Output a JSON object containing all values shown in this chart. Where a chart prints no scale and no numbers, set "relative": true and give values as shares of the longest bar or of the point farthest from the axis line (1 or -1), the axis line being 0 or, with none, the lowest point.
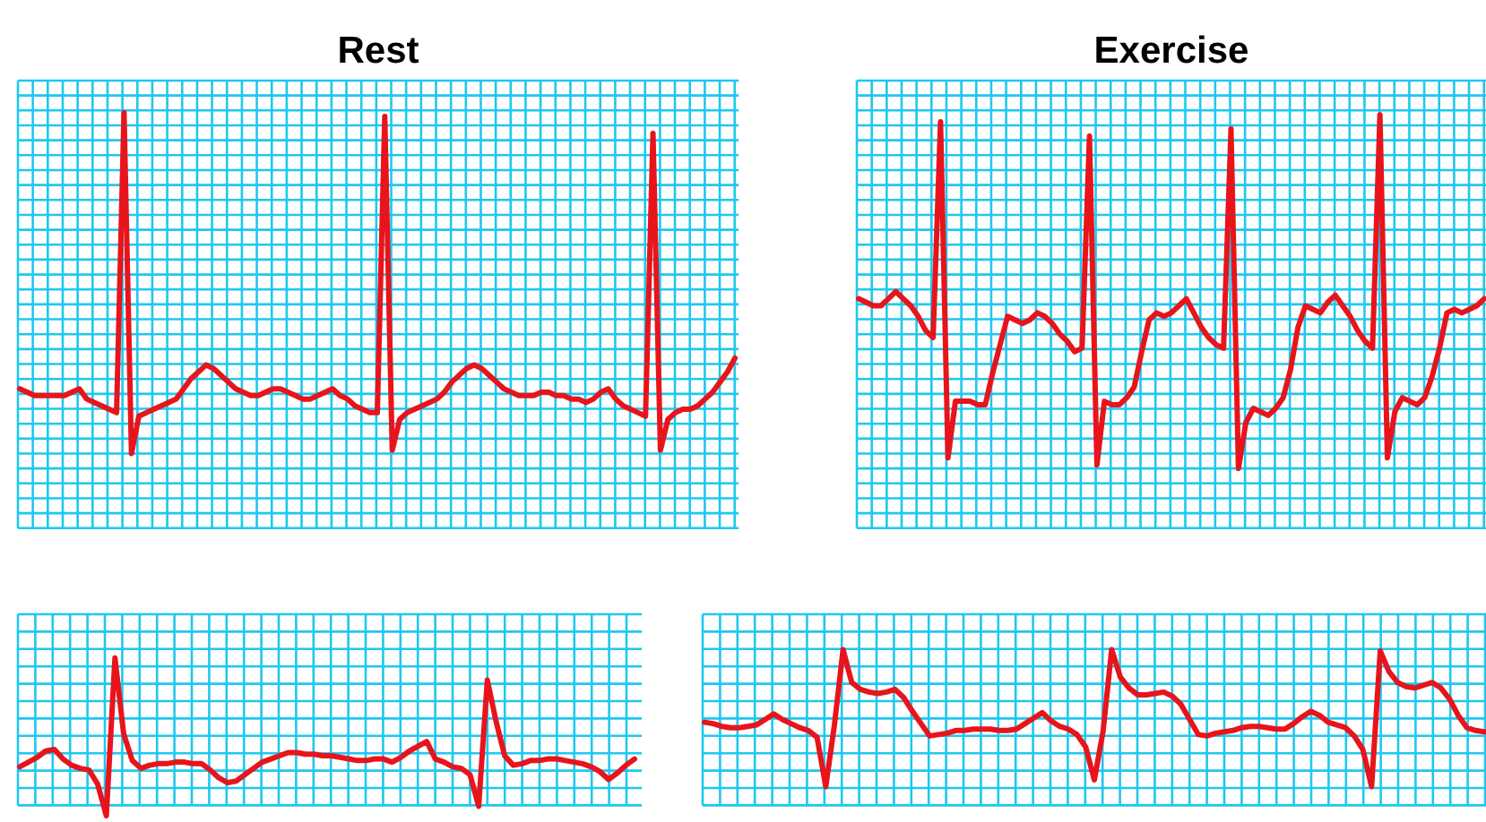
{
  "chart_data": [
    {
      "type": "line",
      "title": "Rest",
      "relative": true,
      "grid": true,
      "categories": [
        null,
        null,
        null,
        null,
        null,
        null,
        null,
        null,
        null,
        null,
        null,
        null,
        null,
        null,
        null,
        null,
        null,
        null,
        null,
        null,
        null,
        null,
        null,
        null,
        null,
        null,
        null,
        null,
        null,
        null,
        null,
        null,
        null,
        null,
        null,
        null,
        null,
        null,
        null,
        null,
        null,
        null,
        null,
        null,
        null,
        null,
        null,
        null,
        null,
        null,
        null,
        null,
        null,
        null,
        null,
        null,
        null,
        null,
        null,
        null,
        null,
        null,
        null,
        null,
        null,
        null,
        null,
        null,
        null,
        null,
        null,
        null,
        null,
        null,
        null,
        null,
        null,
        null,
        null,
        null,
        null,
        null,
        null,
        null,
        null,
        null,
        null,
        null,
        null,
        null,
        null,
        null,
        null,
        null,
        null,
        null,
        null
      ],
      "series": [
        {
          "color": "#e8141c",
          "values": [
            0.19,
            0.18,
            0.17,
            0.17,
            0.17,
            0.17,
            0.17,
            0.18,
            0.19,
            0.16,
            0.15,
            0.14,
            0.13,
            0.12,
            1,
            0,
            0.11,
            0.12,
            0.13,
            0.14,
            0.15,
            0.16,
            0.19,
            0.22,
            0.24,
            0.26,
            0.25,
            0.23,
            0.21,
            0.19,
            0.18,
            0.17,
            0.17,
            0.18,
            0.19,
            0.19,
            0.18,
            0.17,
            0.16,
            0.16,
            0.17,
            0.18,
            0.19,
            0.17,
            0.16,
            0.14,
            0.13,
            0.12,
            0.12,
            0.99,
            0.01,
            0.1,
            0.12,
            0.13,
            0.14,
            0.15,
            0.16,
            0.18,
            0.21,
            0.23,
            0.25,
            0.26,
            0.25,
            0.23,
            0.21,
            0.19,
            0.18,
            0.17,
            0.17,
            0.17,
            0.18,
            0.18,
            0.17,
            0.17,
            0.16,
            0.16,
            0.15,
            0.16,
            0.18,
            0.19,
            0.16,
            0.14,
            0.13,
            0.12,
            0.11,
            0.94,
            0.01,
            0.1,
            0.12,
            0.13,
            0.13,
            0.14,
            0.16,
            0.18,
            0.21,
            0.24,
            0.28
          ]
        }
      ]
    },
    {
      "type": "line",
      "title": "Exercise",
      "relative": true,
      "grid": true,
      "categories": [
        null,
        null,
        null,
        null,
        null,
        null,
        null,
        null,
        null,
        null,
        null,
        null,
        null,
        null,
        null,
        null,
        null,
        null,
        null,
        null,
        null,
        null,
        null,
        null,
        null,
        null,
        null,
        null,
        null,
        null,
        null,
        null,
        null,
        null,
        null,
        null,
        null,
        null,
        null,
        null,
        null,
        null,
        null,
        null,
        null,
        null,
        null,
        null,
        null,
        null,
        null,
        null,
        null,
        null,
        null,
        null,
        null,
        null,
        null,
        null,
        null,
        null,
        null,
        null,
        null,
        null,
        null,
        null,
        null,
        null,
        null,
        null,
        null,
        null,
        null,
        null,
        null,
        null,
        null,
        null,
        null,
        null,
        null,
        null,
        null
      ],
      "series": [
        {
          "color": "#e8141c",
          "values": [
            0.48,
            0.47,
            0.46,
            0.46,
            0.48,
            0.5,
            0.48,
            0.46,
            0.43,
            0.39,
            0.37,
            0.98,
            0.03,
            0.19,
            0.19,
            0.19,
            0.18,
            0.18,
            0.27,
            0.35,
            0.43,
            0.42,
            0.41,
            0.42,
            0.44,
            0.43,
            0.41,
            0.38,
            0.36,
            0.33,
            0.34,
            0.94,
            0.01,
            0.19,
            0.18,
            0.18,
            0.2,
            0.23,
            0.33,
            0.42,
            0.44,
            0.43,
            0.44,
            0.46,
            0.48,
            0.44,
            0.4,
            0.37,
            0.35,
            0.34,
            0.96,
            0,
            0.13,
            0.17,
            0.16,
            0.15,
            0.17,
            0.2,
            0.28,
            0.4,
            0.46,
            0.45,
            0.44,
            0.47,
            0.49,
            0.46,
            0.43,
            0.39,
            0.36,
            0.34,
            1,
            0.03,
            0.16,
            0.2,
            0.19,
            0.18,
            0.2,
            0.26,
            0.34,
            0.44,
            0.45,
            0.44,
            0.45,
            0.46,
            0.48
          ]
        }
      ]
    },
    {
      "type": "line",
      "relative": true,
      "grid": true,
      "categories": [
        null,
        null,
        null,
        null,
        null,
        null,
        null,
        null,
        null,
        null,
        null,
        null,
        null,
        null,
        null,
        null,
        null,
        null,
        null,
        null,
        null,
        null,
        null,
        null,
        null,
        null,
        null,
        null,
        null,
        null,
        null,
        null,
        null,
        null,
        null,
        null,
        null,
        null,
        null,
        null,
        null,
        null,
        null,
        null,
        null,
        null,
        null,
        null,
        null,
        null,
        null,
        null,
        null,
        null,
        null,
        null,
        null,
        null,
        null,
        null,
        null,
        null,
        null,
        null,
        null,
        null,
        null,
        null,
        null,
        null,
        null,
        null
      ],
      "series": [
        {
          "color": "#e8141c",
          "values": [
            0.31,
            0.34,
            0.37,
            0.41,
            0.42,
            0.36,
            0.32,
            0.3,
            0.29,
            0.2,
            0,
            1,
            0.52,
            0.35,
            0.3,
            0.32,
            0.33,
            0.33,
            0.34,
            0.34,
            0.33,
            0.33,
            0.29,
            0.24,
            0.21,
            0.22,
            0.26,
            0.3,
            0.34,
            0.36,
            0.38,
            0.4,
            0.4,
            0.39,
            0.39,
            0.38,
            0.38,
            0.37,
            0.36,
            0.35,
            0.35,
            0.36,
            0.36,
            0.34,
            0.37,
            0.41,
            0.44,
            0.47,
            0.36,
            0.34,
            0.31,
            0.3,
            0.26,
            0.06,
            0.86,
            0.6,
            0.38,
            0.32,
            0.33,
            0.35,
            0.35,
            0.36,
            0.36,
            0.35,
            0.34,
            0.33,
            0.31,
            0.28,
            0.23,
            0.27,
            0.32,
            0.36
          ]
        }
      ]
    },
    {
      "type": "line",
      "relative": true,
      "grid": true,
      "categories": [
        null,
        null,
        null,
        null,
        null,
        null,
        null,
        null,
        null,
        null,
        null,
        null,
        null,
        null,
        null,
        null,
        null,
        null,
        null,
        null,
        null,
        null,
        null,
        null,
        null,
        null,
        null,
        null,
        null,
        null,
        null,
        null,
        null,
        null,
        null,
        null,
        null,
        null,
        null,
        null,
        null,
        null,
        null,
        null,
        null,
        null,
        null,
        null,
        null,
        null,
        null,
        null,
        null,
        null,
        null,
        null,
        null,
        null,
        null,
        null,
        null,
        null,
        null,
        null,
        null,
        null,
        null,
        null,
        null,
        null,
        null,
        null,
        null,
        null,
        null,
        null,
        null,
        null,
        null,
        null,
        null,
        null,
        null,
        null,
        null,
        null,
        null,
        null,
        null,
        null,
        null
      ],
      "series": [
        {
          "color": "#e8141c",
          "values": [
            0.47,
            0.46,
            0.44,
            0.43,
            0.43,
            0.44,
            0.45,
            0.49,
            0.53,
            0.49,
            0.46,
            0.43,
            0.41,
            0.36,
            0,
            0.45,
            1,
            0.76,
            0.71,
            0.69,
            0.68,
            0.69,
            0.71,
            0.65,
            0.55,
            0.46,
            0.37,
            0.38,
            0.39,
            0.41,
            0.41,
            0.42,
            0.42,
            0.42,
            0.41,
            0.41,
            0.42,
            0.46,
            0.5,
            0.54,
            0.48,
            0.44,
            0.42,
            0.38,
            0.29,
            0.05,
            0.4,
            1,
            0.8,
            0.72,
            0.67,
            0.67,
            0.68,
            0.69,
            0.66,
            0.6,
            0.49,
            0.38,
            0.37,
            0.39,
            0.4,
            0.41,
            0.43,
            0.44,
            0.44,
            0.43,
            0.42,
            0.42,
            0.46,
            0.51,
            0.55,
            0.52,
            0.47,
            0.45,
            0.43,
            0.37,
            0.27,
            0,
            0.99,
            0.84,
            0.76,
            0.73,
            0.72,
            0.74,
            0.76,
            0.72,
            0.64,
            0.52,
            0.43,
            0.41,
            0.4
          ]
        }
      ]
    }
  ]
}
